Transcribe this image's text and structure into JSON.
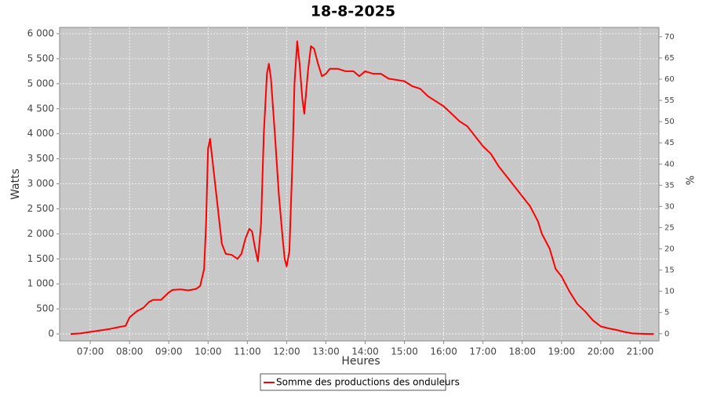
{
  "chart_data": {
    "type": "line",
    "title": "18-8-2025",
    "xlabel": "Heures",
    "ylabel": "Watts",
    "y2label": "%",
    "x": [
      6.5,
      6.75,
      7.0,
      7.25,
      7.5,
      7.75,
      7.9,
      8.0,
      8.2,
      8.35,
      8.5,
      8.6,
      8.8,
      9.0,
      9.1,
      9.3,
      9.5,
      9.7,
      9.8,
      9.9,
      9.95,
      10.0,
      10.05,
      10.15,
      10.25,
      10.35,
      10.45,
      10.6,
      10.75,
      10.85,
      10.95,
      11.05,
      11.12,
      11.2,
      11.27,
      11.35,
      11.42,
      11.5,
      11.55,
      11.6,
      11.7,
      11.8,
      11.9,
      11.95,
      12.0,
      12.07,
      12.15,
      12.2,
      12.27,
      12.33,
      12.4,
      12.45,
      12.55,
      12.62,
      12.7,
      12.8,
      12.9,
      13.0,
      13.1,
      13.3,
      13.5,
      13.7,
      13.85,
      14.0,
      14.2,
      14.4,
      14.6,
      15.0,
      15.2,
      15.4,
      15.6,
      15.8,
      16.0,
      16.2,
      16.4,
      16.6,
      16.8,
      17.0,
      17.2,
      17.4,
      17.6,
      17.8,
      18.0,
      18.2,
      18.4,
      18.5,
      18.6,
      18.7,
      18.85,
      19.0,
      19.1,
      19.2,
      19.4,
      19.6,
      19.8,
      20.0,
      20.2,
      20.4,
      20.6,
      20.8,
      21.0,
      21.2,
      21.35
    ],
    "series": [
      {
        "name": "Somme des productions des onduleurs",
        "color": "#ff0000",
        "values": [
          0,
          10,
          40,
          70,
          100,
          140,
          160,
          330,
          460,
          520,
          640,
          680,
          680,
          830,
          880,
          890,
          870,
          900,
          960,
          1300,
          2200,
          3700,
          3900,
          3200,
          2500,
          1800,
          1600,
          1580,
          1500,
          1600,
          1900,
          2100,
          2050,
          1700,
          1450,
          2200,
          4000,
          5200,
          5400,
          5100,
          4000,
          2800,
          1900,
          1500,
          1350,
          1650,
          3500,
          5000,
          5850,
          5400,
          4700,
          4400,
          5300,
          5750,
          5700,
          5400,
          5150,
          5200,
          5300,
          5300,
          5250,
          5250,
          5150,
          5250,
          5200,
          5200,
          5100,
          5050,
          4950,
          4900,
          4750,
          4650,
          4550,
          4400,
          4250,
          4150,
          3950,
          3750,
          3600,
          3350,
          3150,
          2950,
          2750,
          2550,
          2250,
          2000,
          1850,
          1700,
          1300,
          1150,
          1000,
          850,
          600,
          450,
          270,
          150,
          110,
          80,
          40,
          10,
          5,
          0,
          0
        ]
      }
    ],
    "xlim": [
      6.22,
      21.48
    ],
    "xticks": [
      {
        "value": 7,
        "label": "07:00"
      },
      {
        "value": 8,
        "label": "08:00"
      },
      {
        "value": 9,
        "label": "09:00"
      },
      {
        "value": 10,
        "label": "10:00"
      },
      {
        "value": 11,
        "label": "11:00"
      },
      {
        "value": 12,
        "label": "12:00"
      },
      {
        "value": 13,
        "label": "13:00"
      },
      {
        "value": 14,
        "label": "14:00"
      },
      {
        "value": 15,
        "label": "15:00"
      },
      {
        "value": 16,
        "label": "16:00"
      },
      {
        "value": 17,
        "label": "17:00"
      },
      {
        "value": 18,
        "label": "18:00"
      },
      {
        "value": 19,
        "label": "19:00"
      },
      {
        "value": 20,
        "label": "20:00"
      },
      {
        "value": 21,
        "label": "21:00"
      }
    ],
    "ylim": [
      -140,
      6125
    ],
    "yticks": [
      0,
      500,
      {
        "value": 1000,
        "label": "1 000"
      },
      {
        "value": 1500,
        "label": "1 500"
      },
      {
        "value": 2000,
        "label": "2 000"
      },
      {
        "value": 2500,
        "label": "2 500"
      },
      {
        "value": 3000,
        "label": "3 000"
      },
      {
        "value": 3500,
        "label": "3 500"
      },
      {
        "value": 4000,
        "label": "4 000"
      },
      {
        "value": 4500,
        "label": "4 500"
      },
      {
        "value": 5000,
        "label": "5 000"
      },
      {
        "value": 5500,
        "label": "5 500"
      },
      {
        "value": 6000,
        "label": "6 000"
      }
    ],
    "y2lim": [
      -1.7,
      72.2
    ],
    "y2ticks": [
      0,
      5,
      10,
      15,
      20,
      25,
      30,
      35,
      40,
      45,
      50,
      55,
      60,
      65,
      70
    ],
    "grid": true
  }
}
